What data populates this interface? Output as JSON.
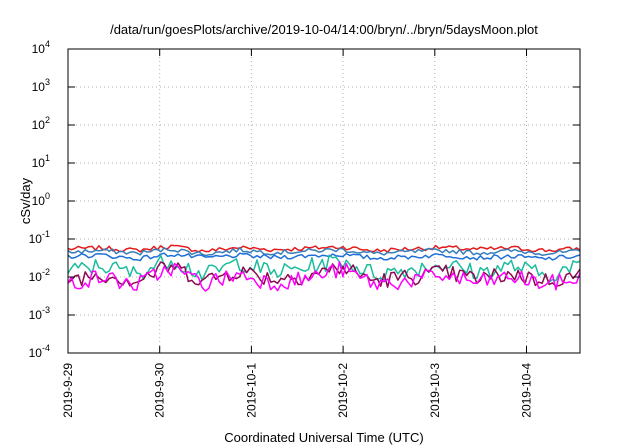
{
  "chart_data": {
    "type": "line",
    "title": "/data/run/goesPlots/archive/2019-10-04/14:00/bryn/../bryn/5daysMoon.plot",
    "xlabel": "Coordinated Universal Time (UTC)",
    "ylabel": "cSv/day",
    "y_scale": "log",
    "ylim": [
      0.0001,
      10000
    ],
    "y_ticks": [
      {
        "base": "10",
        "exp": "-4"
      },
      {
        "base": "10",
        "exp": "-3"
      },
      {
        "base": "10",
        "exp": "-2"
      },
      {
        "base": "10",
        "exp": "-1"
      },
      {
        "base": "10",
        "exp": "0"
      },
      {
        "base": "10",
        "exp": "1"
      },
      {
        "base": "10",
        "exp": "2"
      },
      {
        "base": "10",
        "exp": "3"
      },
      {
        "base": "10",
        "exp": "4"
      }
    ],
    "x_ticks": [
      "2019-9-29",
      "2019-9-30",
      "2019-10-1",
      "2019-10-2",
      "2019-10-3",
      "2019-10-4"
    ],
    "xlim": [
      "2019-09-29T00:00",
      "2019-10-04T14:00"
    ],
    "grid": true,
    "series": [
      {
        "color": "#e41a1c",
        "values": [
          0.055,
          0.058,
          0.05,
          0.065,
          0.048,
          0.06,
          0.052,
          0.057,
          0.062,
          0.049,
          0.055,
          0.06,
          0.053,
          0.058,
          0.05,
          0.056
        ]
      },
      {
        "color": "#377eb8",
        "values": [
          0.045,
          0.05,
          0.042,
          0.055,
          0.04,
          0.052,
          0.044,
          0.048,
          0.053,
          0.041,
          0.046,
          0.05,
          0.043,
          0.049,
          0.042,
          0.047
        ]
      },
      {
        "color": "#1e6fd9",
        "values": [
          0.035,
          0.038,
          0.03,
          0.04,
          0.032,
          0.037,
          0.033,
          0.036,
          0.039,
          0.031,
          0.034,
          0.038,
          0.032,
          0.035,
          0.03,
          0.036
        ]
      },
      {
        "color": "#1abc9c",
        "values": [
          0.014,
          0.02,
          0.012,
          0.03,
          0.011,
          0.025,
          0.013,
          0.018,
          0.028,
          0.012,
          0.016,
          0.022,
          0.013,
          0.02,
          0.011,
          0.019
        ]
      },
      {
        "color": "#8b0a50",
        "values": [
          0.009,
          0.012,
          0.008,
          0.02,
          0.008,
          0.015,
          0.009,
          0.011,
          0.018,
          0.008,
          0.01,
          0.013,
          0.009,
          0.012,
          0.008,
          0.011
        ]
      },
      {
        "color": "#ff00ff",
        "values": [
          0.007,
          0.01,
          0.006,
          0.018,
          0.0065,
          0.012,
          0.007,
          0.009,
          0.016,
          0.0065,
          0.008,
          0.011,
          0.007,
          0.01,
          0.0065,
          0.009
        ]
      }
    ]
  }
}
